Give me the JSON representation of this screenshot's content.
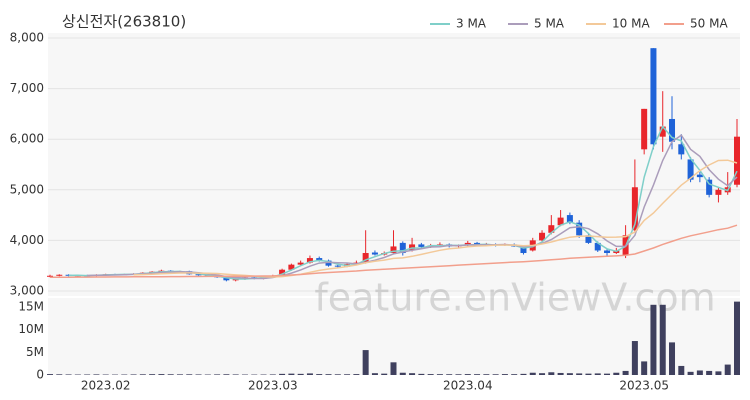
{
  "chart_data": [
    {
      "type": "candlestick",
      "title": "상신전자(263810)",
      "annotation": "feature.enViewV.com",
      "ylim": [
        2900,
        8100
      ],
      "yticks": [
        {
          "value": 3000,
          "label": "3,000"
        },
        {
          "value": 4000,
          "label": "4,000"
        },
        {
          "value": 5000,
          "label": "5,000"
        },
        {
          "value": 6000,
          "label": "6,000"
        },
        {
          "value": 7000,
          "label": "7,000"
        },
        {
          "value": 8000,
          "label": "8,000"
        }
      ],
      "grid": true,
      "legend": "top-right",
      "up_color": "#e8262b",
      "down_color": "#1f63d8",
      "open": [
        3290,
        3300,
        3320,
        3300,
        3310,
        3300,
        3320,
        3330,
        3320,
        3330,
        3340,
        3360,
        3380,
        3400,
        3370,
        3390,
        3330,
        3310,
        3300,
        3270,
        3210,
        3230,
        3270,
        3240,
        3280,
        3300,
        3420,
        3520,
        3560,
        3650,
        3600,
        3500,
        3480,
        3530,
        3560,
        3760,
        3720,
        3750,
        3950,
        3800,
        3920,
        3870,
        3900,
        3920,
        3880,
        3900,
        3950,
        3900,
        3920,
        3900,
        3920,
        3880,
        3800,
        4000,
        4150,
        4300,
        4500,
        4350,
        4100,
        3950,
        3800,
        3750,
        3700,
        4200,
        5800,
        7800,
        6050,
        6400,
        5900,
        5600,
        5300,
        5200,
        4900,
        4950,
        5100
      ],
      "high": [
        3320,
        3330,
        3330,
        3320,
        3320,
        3330,
        3340,
        3340,
        3340,
        3350,
        3370,
        3390,
        3420,
        3410,
        3400,
        3400,
        3340,
        3320,
        3310,
        3280,
        3250,
        3280,
        3280,
        3290,
        3320,
        3440,
        3540,
        3600,
        3700,
        3680,
        3620,
        3520,
        3560,
        3600,
        4200,
        3800,
        3780,
        4200,
        3980,
        4050,
        3950,
        3930,
        3960,
        3940,
        3920,
        3990,
        3970,
        3950,
        3940,
        3940,
        3940,
        3900,
        4050,
        4200,
        4500,
        4600,
        4550,
        4400,
        4150,
        3980,
        3830,
        3850,
        4300,
        5600,
        6600,
        7800,
        6950,
        6850,
        6100,
        5650,
        5350,
        5250,
        5050,
        5350,
        6400
      ],
      "low": [
        3270,
        3290,
        3290,
        3290,
        3290,
        3290,
        3310,
        3310,
        3310,
        3320,
        3330,
        3350,
        3370,
        3360,
        3360,
        3320,
        3300,
        3290,
        3260,
        3190,
        3190,
        3220,
        3230,
        3230,
        3270,
        3290,
        3400,
        3500,
        3540,
        3580,
        3480,
        3450,
        3470,
        3510,
        3540,
        3700,
        3700,
        3730,
        3700,
        3780,
        3850,
        3850,
        3880,
        3860,
        3860,
        3880,
        3890,
        3890,
        3880,
        3890,
        3870,
        3720,
        3780,
        3980,
        4120,
        4280,
        4320,
        4050,
        3930,
        3770,
        3700,
        3730,
        3650,
        4150,
        5700,
        5800,
        5750,
        5800,
        5600,
        5150,
        5150,
        4850,
        4750,
        4900,
        5050
      ],
      "close": [
        3300,
        3320,
        3300,
        3310,
        3300,
        3320,
        3330,
        3320,
        3330,
        3340,
        3360,
        3380,
        3400,
        3370,
        3390,
        3330,
        3310,
        3300,
        3270,
        3210,
        3230,
        3270,
        3240,
        3280,
        3300,
        3420,
        3520,
        3560,
        3650,
        3600,
        3500,
        3480,
        3530,
        3560,
        3750,
        3720,
        3750,
        3880,
        3750,
        3920,
        3870,
        3900,
        3920,
        3880,
        3900,
        3950,
        3900,
        3920,
        3900,
        3920,
        3880,
        3750,
        4000,
        4150,
        4300,
        4450,
        4350,
        4100,
        3950,
        3800,
        3750,
        3800,
        4100,
        5050,
        6600,
        5900,
        6250,
        5950,
        5700,
        5200,
        5250,
        4900,
        5000,
        5050,
        6050
      ],
      "series": [
        {
          "name": "3 MA",
          "color": "#7fcfc9",
          "values": [
            null,
            null,
            3307,
            3310,
            3303,
            3310,
            3317,
            3323,
            3327,
            3330,
            3343,
            3360,
            3380,
            3383,
            3387,
            3363,
            3343,
            3313,
            3293,
            3260,
            3237,
            3237,
            3247,
            3263,
            3273,
            3333,
            3413,
            3500,
            3577,
            3603,
            3583,
            3527,
            3503,
            3523,
            3613,
            3677,
            3740,
            3783,
            3793,
            3850,
            3847,
            3897,
            3897,
            3900,
            3900,
            3910,
            3917,
            3923,
            3907,
            3913,
            3900,
            3850,
            3877,
            3967,
            4150,
            4300,
            4367,
            4300,
            4133,
            3950,
            3833,
            3783,
            3883,
            4317,
            5250,
            5850,
            6250,
            6033,
            5967,
            5617,
            5383,
            5117,
            5050,
            4983,
            5367
          ]
        },
        {
          "name": "5 MA",
          "color": "#ab9dbb",
          "values": [
            null,
            null,
            null,
            null,
            3306,
            3310,
            3312,
            3316,
            3320,
            3328,
            3336,
            3346,
            3366,
            3372,
            3380,
            3374,
            3360,
            3340,
            3316,
            3284,
            3264,
            3256,
            3246,
            3246,
            3266,
            3302,
            3352,
            3416,
            3490,
            3550,
            3566,
            3558,
            3552,
            3534,
            3564,
            3608,
            3662,
            3732,
            3770,
            3804,
            3834,
            3868,
            3872,
            3898,
            3894,
            3910,
            3910,
            3910,
            3914,
            3918,
            3904,
            3874,
            3890,
            3940,
            4016,
            4130,
            4250,
            4270,
            4230,
            4130,
            3990,
            3880,
            3880,
            4100,
            4660,
            5090,
            5580,
            5950,
            6080,
            5800,
            5660,
            5400,
            5210,
            5080,
            5250
          ]
        },
        {
          "name": "10 MA",
          "color": "#f3c999",
          "values": [
            null,
            null,
            null,
            null,
            null,
            null,
            null,
            null,
            null,
            3318,
            3324,
            3330,
            3340,
            3346,
            3354,
            3355,
            3353,
            3350,
            3344,
            3331,
            3318,
            3307,
            3293,
            3284,
            3275,
            3284,
            3305,
            3331,
            3368,
            3407,
            3434,
            3455,
            3484,
            3512,
            3557,
            3587,
            3610,
            3643,
            3653,
            3685,
            3722,
            3764,
            3803,
            3835,
            3850,
            3873,
            3888,
            3892,
            3907,
            3907,
            3908,
            3893,
            3901,
            3928,
            3968,
            4018,
            4063,
            4081,
            4086,
            4074,
            4060,
            4065,
            4075,
            4165,
            4395,
            4540,
            4730,
            4915,
            5090,
            5230,
            5380,
            5490,
            5580,
            5585,
            5530
          ]
        },
        {
          "name": "50 MA",
          "color": "#f29f8c",
          "values": [
            3270,
            3271,
            3272,
            3273,
            3274,
            3275,
            3276,
            3277,
            3278,
            3279,
            3280,
            3281,
            3282,
            3283,
            3284,
            3285,
            3286,
            3287,
            3288,
            3289,
            3290,
            3292,
            3294,
            3296,
            3298,
            3305,
            3315,
            3325,
            3340,
            3355,
            3365,
            3375,
            3385,
            3395,
            3410,
            3420,
            3430,
            3440,
            3450,
            3460,
            3470,
            3480,
            3490,
            3500,
            3510,
            3520,
            3530,
            3540,
            3550,
            3560,
            3570,
            3578,
            3590,
            3602,
            3615,
            3630,
            3645,
            3658,
            3668,
            3676,
            3684,
            3692,
            3705,
            3730,
            3790,
            3850,
            3920,
            3980,
            4040,
            4090,
            4130,
            4170,
            4210,
            4240,
            4300
          ]
        }
      ]
    },
    {
      "type": "bar",
      "color": "#3f405e",
      "ylim": [
        0,
        17000000
      ],
      "yticks": [
        0,
        {
          "value": 5000000,
          "label": "5M"
        },
        {
          "value": 10000000,
          "label": "10M"
        },
        {
          "value": 15000000,
          "label": "15M"
        }
      ],
      "categories": [
        null,
        null,
        null,
        null,
        null,
        null,
        "2023.02",
        null,
        null,
        null,
        null,
        null,
        null,
        null,
        null,
        null,
        null,
        null,
        null,
        null,
        null,
        null,
        null,
        null,
        "2023.03",
        null,
        null,
        null,
        null,
        null,
        null,
        null,
        null,
        null,
        null,
        null,
        null,
        null,
        null,
        null,
        null,
        null,
        null,
        null,
        null,
        "2023.04",
        null,
        null,
        null,
        null,
        null,
        null,
        null,
        null,
        null,
        null,
        null,
        null,
        null,
        null,
        null,
        null,
        null,
        null,
        "2023.05",
        null,
        null,
        null,
        null,
        null,
        null,
        null,
        null,
        null,
        null
      ],
      "values": [
        200000,
        150000,
        120000,
        100000,
        110000,
        130000,
        100000,
        90000,
        100000,
        120000,
        150000,
        180000,
        200000,
        160000,
        140000,
        150000,
        120000,
        100000,
        130000,
        160000,
        120000,
        100000,
        90000,
        100000,
        120000,
        250000,
        300000,
        250000,
        350000,
        200000,
        180000,
        150000,
        160000,
        200000,
        5500000,
        400000,
        300000,
        2800000,
        500000,
        400000,
        250000,
        200000,
        180000,
        170000,
        160000,
        200000,
        180000,
        170000,
        160000,
        200000,
        180000,
        250000,
        500000,
        400000,
        600000,
        450000,
        400000,
        350000,
        300000,
        350000,
        300000,
        500000,
        900000,
        7500000,
        3000000,
        15500000,
        15500000,
        7200000,
        2000000,
        700000,
        1000000,
        900000,
        800000,
        2300000,
        16200000
      ]
    }
  ]
}
